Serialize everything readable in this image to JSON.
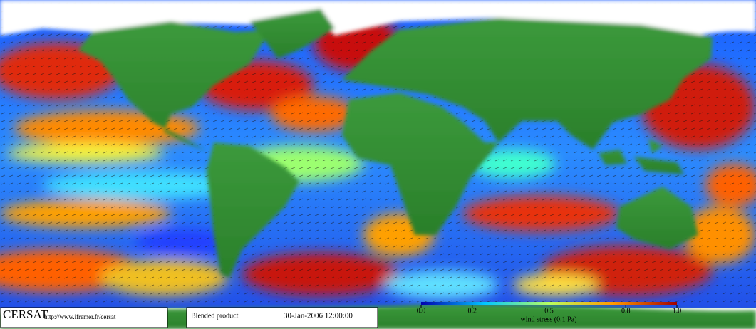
{
  "logo": {
    "name": "CERSAT",
    "url": "http://www.ifremer.fr/cersat"
  },
  "product": {
    "name": "Blended product",
    "date": "30-Jan-2006 12:00:00"
  },
  "colorbar": {
    "lim": [
      0,
      1
    ],
    "ticks": [
      {
        "value": 0,
        "label": "0.0"
      },
      {
        "value": 0.2,
        "label": "0.2"
      },
      {
        "value": 0.5,
        "label": "0.5"
      },
      {
        "value": 0.8,
        "label": "0.8"
      },
      {
        "value": 1,
        "label": "1.0"
      }
    ],
    "label": "wind stress (0.1 Pa)"
  }
}
